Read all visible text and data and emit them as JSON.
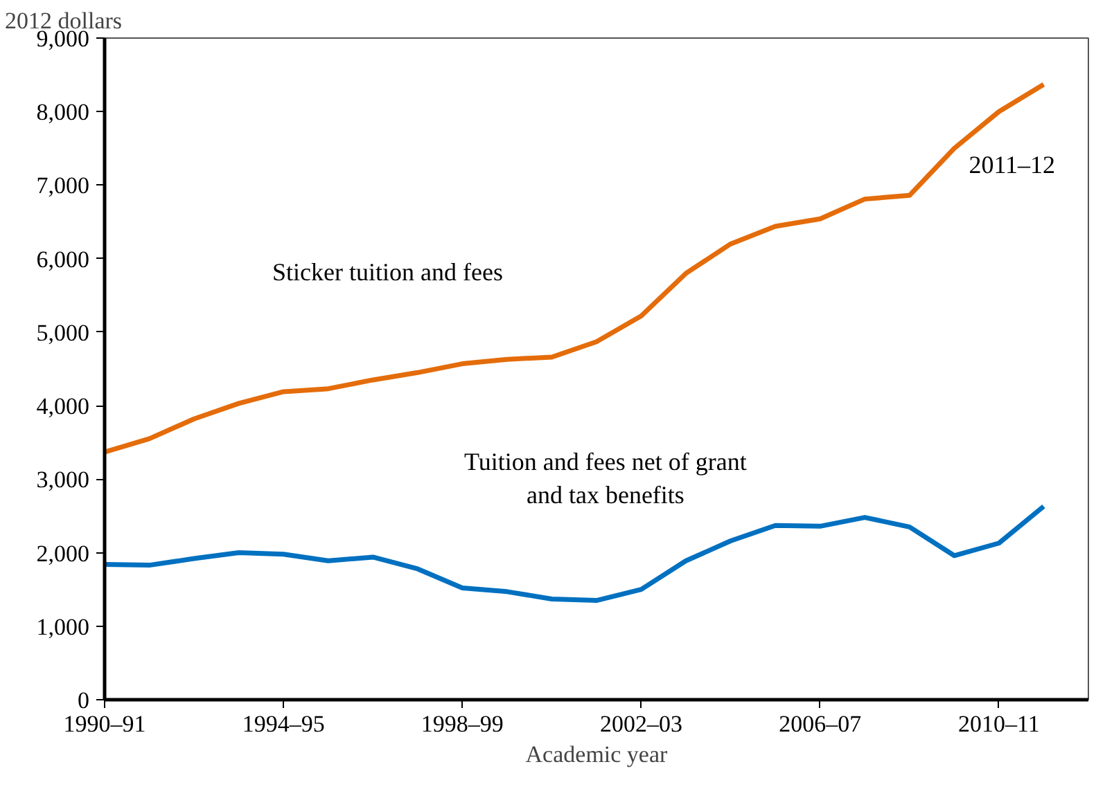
{
  "chart_data": {
    "type": "line",
    "ylabel": "2012 dollars",
    "xlabel": "Academic year",
    "categories": [
      "1990–91",
      null,
      null,
      null,
      "1994–95",
      null,
      null,
      null,
      "1998–99",
      null,
      null,
      null,
      "2002–03",
      null,
      null,
      null,
      "2006–07",
      null,
      null,
      null,
      "2010–11",
      null
    ],
    "series": [
      {
        "name": "Sticker tuition and fees",
        "color": "#e46c0a",
        "values": [
          3370,
          3550,
          3820,
          4030,
          4190,
          4230,
          4350,
          4450,
          4570,
          4630,
          4660,
          4870,
          5220,
          5800,
          6200,
          6440,
          6540,
          6810,
          6860,
          7500,
          8000,
          8370
        ]
      },
      {
        "name": "Tuition and fees net of grant\nand tax benefits",
        "color": "#0070c0",
        "values": [
          1840,
          1830,
          1920,
          2000,
          1980,
          1890,
          1940,
          1780,
          1520,
          1470,
          1370,
          1350,
          1500,
          1890,
          2160,
          2370,
          2360,
          2480,
          2350,
          1960,
          2130,
          2630
        ]
      }
    ],
    "annotations": [
      "2011–12"
    ],
    "ylim": [
      0,
      9000
    ],
    "yticks": [
      {
        "value": 0,
        "label": "0"
      },
      {
        "value": 1000,
        "label": "1,000"
      },
      {
        "value": 2000,
        "label": "2,000"
      },
      {
        "value": 3000,
        "label": "3,000"
      },
      {
        "value": 4000,
        "label": "4,000"
      },
      {
        "value": 5000,
        "label": "5,000"
      },
      {
        "value": 6000,
        "label": "6,000"
      },
      {
        "value": 7000,
        "label": "7,000"
      },
      {
        "value": 8000,
        "label": "8,000"
      },
      {
        "value": 9000,
        "label": "9,000"
      }
    ],
    "grid": false,
    "marker": "none",
    "line_style": "solid"
  }
}
